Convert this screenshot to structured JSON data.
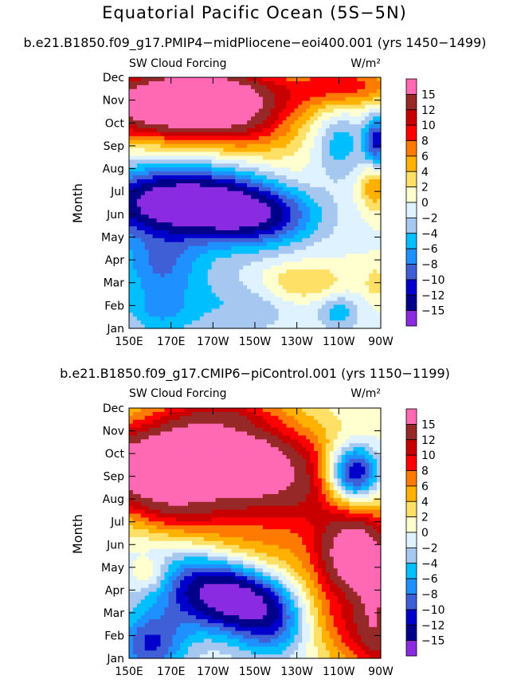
{
  "title": "Equatorial Pacific Ocean (5S−5N)",
  "chart_data": [
    {
      "type": "heatmap",
      "title": "b.e21.B1850.f09_g17.PMIP4−midPliocene−eoi400.001 (yrs 1450−1499)",
      "left_label": "SW Cloud Forcing",
      "units_label": "W/m²",
      "ylabel": "Month",
      "x_tick_labels": [
        "150E",
        "170E",
        "170W",
        "150W",
        "130W",
        "110W",
        "90W"
      ],
      "x_range": [
        150,
        270
      ],
      "y_tick_labels": [
        "Jan",
        "Feb",
        "Mar",
        "Apr",
        "May",
        "Jun",
        "Jul",
        "Aug",
        "Sep",
        "Oct",
        "Nov",
        "Dec"
      ],
      "y_range": [
        1,
        12
      ],
      "colorbar_labels": [
        "15",
        "12",
        "10",
        "8",
        "6",
        "4",
        "2",
        "0",
        "−2",
        "−4",
        "−6",
        "−8",
        "−10",
        "−12",
        "−15"
      ],
      "features": [
        {
          "lon": 160,
          "month": 10.8,
          "value": 17,
          "sx": 22,
          "sy": 1.1
        },
        {
          "lon": 188,
          "month": 11.2,
          "value": 14,
          "sx": 18,
          "sy": 0.9
        },
        {
          "lon": 205,
          "month": 10.0,
          "value": 9,
          "sx": 20,
          "sy": 1.0
        },
        {
          "lon": 230,
          "month": 11.5,
          "value": 6,
          "sx": 24,
          "sy": 0.8
        },
        {
          "lon": 258,
          "month": 11.7,
          "value": 6,
          "sx": 16,
          "sy": 0.7
        },
        {
          "lon": 250,
          "month": 9.0,
          "value": -6,
          "sx": 9,
          "sy": 1.2
        },
        {
          "lon": 268,
          "month": 9.2,
          "value": -11,
          "sx": 4,
          "sy": 0.8
        },
        {
          "lon": 267,
          "month": 7.2,
          "value": 6,
          "sx": 5,
          "sy": 0.7
        },
        {
          "lon": 175,
          "month": 6.5,
          "value": -19,
          "sx": 30,
          "sy": 1.1
        },
        {
          "lon": 212,
          "month": 5.9,
          "value": -10,
          "sx": 20,
          "sy": 0.9
        },
        {
          "lon": 165,
          "month": 3.8,
          "value": -7,
          "sx": 15,
          "sy": 0.9
        },
        {
          "lon": 165,
          "month": 1.8,
          "value": -6,
          "sx": 14,
          "sy": 0.9
        },
        {
          "lon": 205,
          "month": 2.2,
          "value": -4,
          "sx": 18,
          "sy": 1.1
        },
        {
          "lon": 250,
          "month": 1.7,
          "value": -5,
          "sx": 7,
          "sy": 0.6
        },
        {
          "lon": 230,
          "month": 3.0,
          "value": 5,
          "sx": 16,
          "sy": 0.6
        },
        {
          "lon": 232,
          "month": 7.5,
          "value": 2,
          "sx": 24,
          "sy": 1.2
        },
        {
          "lon": 268,
          "month": 3.0,
          "value": 3,
          "sx": 4,
          "sy": 0.5
        }
      ]
    },
    {
      "type": "heatmap",
      "title": "b.e21.B1850.f09_g17.CMIP6−piControl.001 (yrs 1150−1199)",
      "left_label": "SW Cloud Forcing",
      "units_label": "W/m²",
      "ylabel": "Month",
      "x_tick_labels": [
        "150E",
        "170E",
        "170W",
        "150W",
        "130W",
        "110W",
        "90W"
      ],
      "x_range": [
        150,
        270
      ],
      "y_tick_labels": [
        "Jan",
        "Feb",
        "Mar",
        "Apr",
        "May",
        "Jun",
        "Jul",
        "Aug",
        "Sep",
        "Oct",
        "Nov",
        "Dec"
      ],
      "y_range": [
        1,
        12
      ],
      "colorbar_labels": [
        "15",
        "12",
        "10",
        "8",
        "6",
        "4",
        "2",
        "0",
        "−2",
        "−4",
        "−6",
        "−8",
        "−10",
        "−12",
        "−15"
      ],
      "features": [
        {
          "lon": 180,
          "month": 9.8,
          "value": 16,
          "sx": 30,
          "sy": 1.6
        },
        {
          "lon": 178,
          "month": 10.0,
          "value": 6,
          "sx": 18,
          "sy": 0.8
        },
        {
          "lon": 212,
          "month": 9.2,
          "value": 9,
          "sx": 24,
          "sy": 1.5
        },
        {
          "lon": 245,
          "month": 7.5,
          "value": 7,
          "sx": 25,
          "sy": 2.0
        },
        {
          "lon": 258,
          "month": 5.4,
          "value": 16,
          "sx": 12,
          "sy": 1.2
        },
        {
          "lon": 268,
          "month": 3.5,
          "value": 9,
          "sx": 7,
          "sy": 1.5
        },
        {
          "lon": 257,
          "month": 9.1,
          "value": -18,
          "sx": 9,
          "sy": 0.9
        },
        {
          "lon": 200,
          "month": 3.8,
          "value": -18,
          "sx": 22,
          "sy": 1.1
        },
        {
          "lon": 220,
          "month": 2.5,
          "value": -9,
          "sx": 14,
          "sy": 1.2
        },
        {
          "lon": 160,
          "month": 1.6,
          "value": -10,
          "sx": 12,
          "sy": 1.0
        },
        {
          "lon": 187,
          "month": 5.8,
          "value": -5,
          "sx": 18,
          "sy": 1.4
        },
        {
          "lon": 160,
          "month": 4.7,
          "value": 4,
          "sx": 6,
          "sy": 0.5
        },
        {
          "lon": 240,
          "month": 1.5,
          "value": 2,
          "sx": 22,
          "sy": 1.3
        },
        {
          "lon": 195,
          "month": 11.8,
          "value": 4,
          "sx": 20,
          "sy": 0.4
        }
      ],
      "ridge": {
        "value": 8,
        "from_lon": 150,
        "from_month": 8.8,
        "to_lon": 270,
        "to_month": 1.5,
        "width_months": 1.3
      }
    }
  ]
}
